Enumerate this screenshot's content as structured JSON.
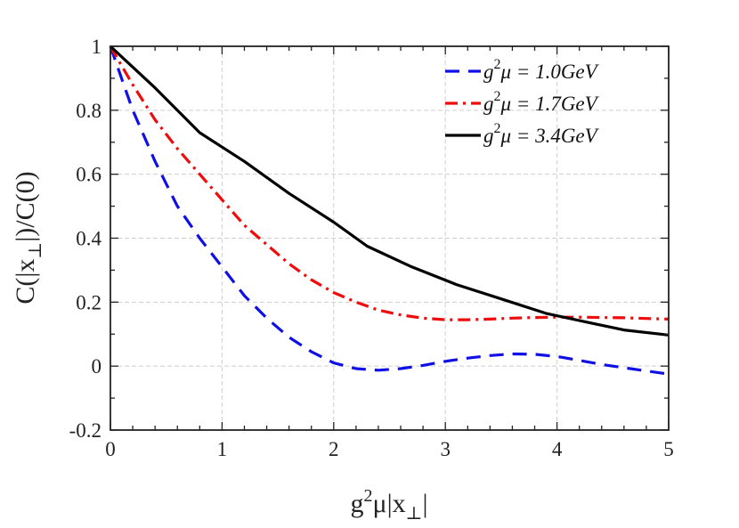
{
  "chart_data": {
    "type": "line",
    "title": "",
    "xlabel": "g²μ|x⊥|",
    "ylabel": "C(|x⊥|)/C(0)",
    "xlim": [
      0,
      5
    ],
    "ylim": [
      -0.2,
      1
    ],
    "grid": true,
    "legend_position": "top-right",
    "x_ticks": [
      0,
      1,
      2,
      3,
      4,
      5
    ],
    "x_tick_labels": [
      "0",
      "1",
      "2",
      "3",
      "4",
      "5"
    ],
    "y_ticks": [
      -0.2,
      0,
      0.2,
      0.4,
      0.6,
      0.8,
      1
    ],
    "y_tick_labels": [
      "-0.2",
      "0",
      "0.2",
      "0.4",
      "0.6",
      "0.8",
      "1"
    ],
    "series": [
      {
        "name": "g²μ = 1.0GeV",
        "legend_lhs": "g",
        "legend_sup": "2",
        "legend_rhs": "μ = 1.0GeV",
        "color": "#1010e6",
        "style": "dashed",
        "x": [
          0,
          0.1,
          0.2,
          0.4,
          0.6,
          0.8,
          1.0,
          1.2,
          1.4,
          1.6,
          1.8,
          2.0,
          2.2,
          2.4,
          2.6,
          2.8,
          3.0,
          3.2,
          3.4,
          3.6,
          3.8,
          4.0,
          4.2,
          4.4,
          4.6,
          4.8,
          5.0
        ],
        "y": [
          1.0,
          0.9,
          0.8,
          0.64,
          0.5,
          0.4,
          0.31,
          0.22,
          0.15,
          0.09,
          0.045,
          0.01,
          -0.008,
          -0.013,
          -0.008,
          0.002,
          0.015,
          0.025,
          0.033,
          0.038,
          0.037,
          0.03,
          0.018,
          0.005,
          -0.005,
          -0.015,
          -0.025
        ]
      },
      {
        "name": "g²μ = 1.7GeV",
        "legend_lhs": "g",
        "legend_sup": "2",
        "legend_rhs": "μ = 1.7GeV",
        "color": "#ee0c0c",
        "style": "dashdot",
        "x": [
          0,
          0.1,
          0.2,
          0.4,
          0.6,
          0.8,
          1.0,
          1.2,
          1.4,
          1.6,
          1.8,
          2.0,
          2.2,
          2.4,
          2.6,
          2.8,
          3.0,
          3.2,
          3.4,
          3.6,
          3.8,
          4.0,
          4.2,
          4.4,
          4.6,
          4.8,
          5.0
        ],
        "y": [
          1.0,
          0.94,
          0.88,
          0.77,
          0.68,
          0.6,
          0.52,
          0.44,
          0.38,
          0.32,
          0.27,
          0.23,
          0.2,
          0.175,
          0.16,
          0.15,
          0.145,
          0.145,
          0.147,
          0.15,
          0.152,
          0.153,
          0.153,
          0.152,
          0.151,
          0.149,
          0.147
        ]
      },
      {
        "name": "g²μ = 3.4GeV",
        "legend_lhs": "g",
        "legend_sup": "2",
        "legend_rhs": "μ = 3.4GeV",
        "color": "#000000",
        "style": "solid",
        "x": [
          0,
          0.4,
          0.8,
          1.2,
          1.6,
          2.0,
          2.3,
          2.7,
          3.1,
          3.5,
          3.9,
          4.3,
          4.6,
          5.0
        ],
        "y": [
          1.0,
          0.87,
          0.73,
          0.64,
          0.54,
          0.45,
          0.375,
          0.31,
          0.255,
          0.21,
          0.165,
          0.135,
          0.113,
          0.097
        ]
      }
    ]
  }
}
